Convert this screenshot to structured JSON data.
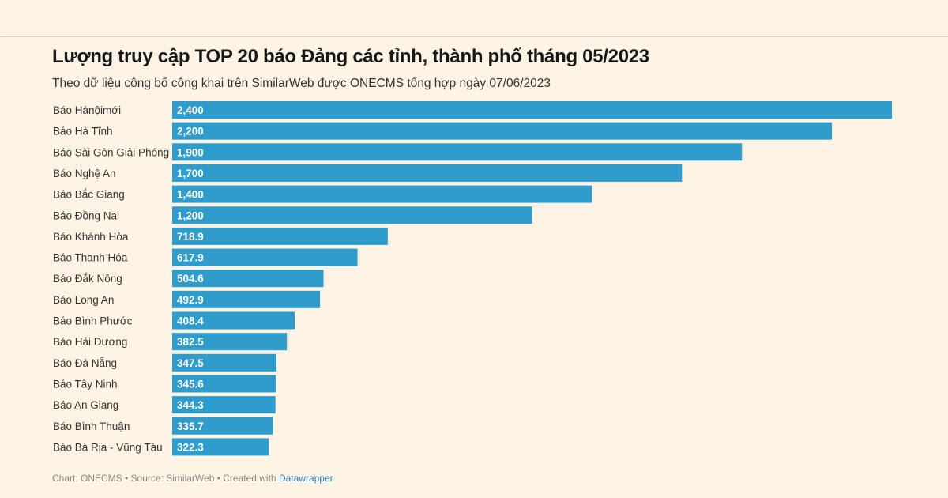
{
  "title": "Lượng truy cập TOP 20 báo Đảng các tỉnh, thành phố tháng 05/2023",
  "subtitle": "Theo dữ liệu công bố công khai trên SimilarWeb được ONECMS tổng hợp ngày 07/06/2023",
  "footer": {
    "prefix": "Chart: ONECMS • Source: SimilarWeb • Created with ",
    "link": "Datawrapper"
  },
  "chart_data": {
    "type": "bar",
    "orientation": "horizontal",
    "color": "#2f9ccb",
    "categories": [
      "Báo Hànộimới",
      "Báo Hà Tĩnh",
      "Báo Sài Gòn Giải Phóng",
      "Báo Nghệ An",
      "Báo Bắc Giang",
      "Báo Đồng Nai",
      "Báo Khánh Hòa",
      "Báo Thanh Hóa",
      "Báo Đắk Nông",
      "Báo Long An",
      "Báo Bình Phước",
      "Báo Hải Dương",
      "Báo Đà Nẵng",
      "Báo Tây Ninh",
      "Báo An Giang",
      "Báo Bình Thuận",
      "Báo Bà Rịa - Vũng Tàu"
    ],
    "values": [
      2400,
      2200,
      1900,
      1700,
      1400,
      1200,
      718.9,
      617.9,
      504.6,
      492.9,
      408.4,
      382.5,
      347.5,
      345.6,
      344.3,
      335.7,
      322.3
    ],
    "value_labels": [
      "2,400",
      "2,200",
      "1,900",
      "1,700",
      "1,400",
      "1,200",
      "718.9",
      "617.9",
      "504.6",
      "492.9",
      "408.4",
      "382.5",
      "347.5",
      "345.6",
      "344.3",
      "335.7",
      "322.3"
    ],
    "xlim": [
      0,
      2400
    ],
    "grid": false
  }
}
